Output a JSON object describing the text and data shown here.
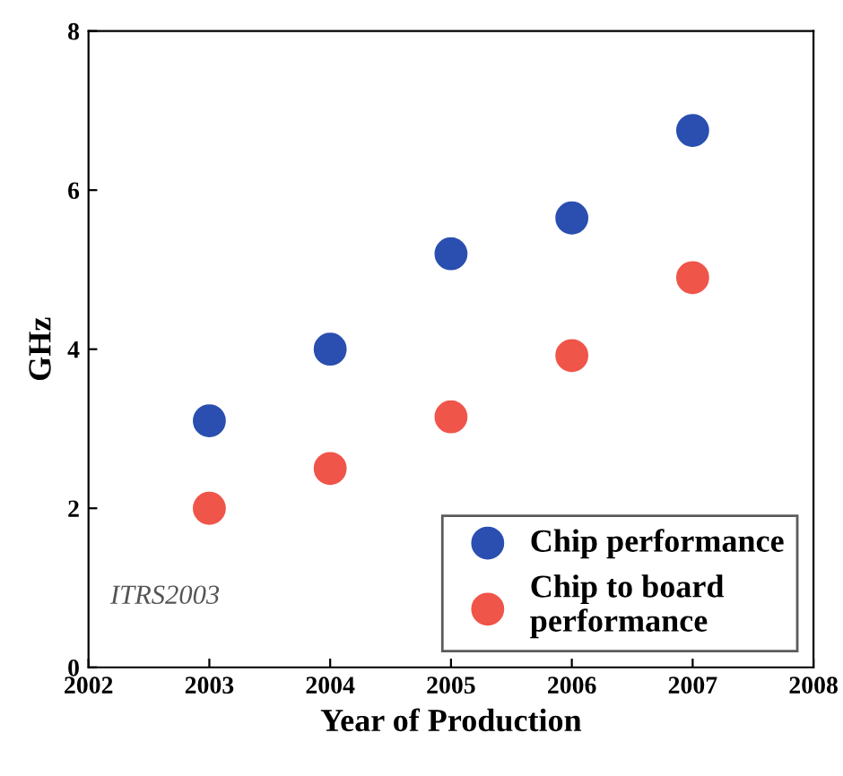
{
  "chart_data": {
    "type": "scatter",
    "xlabel": "Year of Production",
    "ylabel": "GHz",
    "x": [
      2003,
      2004,
      2005,
      2006,
      2007
    ],
    "series": [
      {
        "name": "Chip performance",
        "color": "#2a4fb0",
        "values": [
          3.1,
          4.0,
          5.2,
          5.65,
          6.75
        ]
      },
      {
        "name": "Chip to board\nperformance",
        "color": "#f0554a",
        "values": [
          2.0,
          2.5,
          3.15,
          3.92,
          4.9
        ]
      }
    ],
    "xlim": [
      2002,
      2008
    ],
    "xticks": [
      2002,
      2003,
      2004,
      2005,
      2006,
      2007,
      2008
    ],
    "ylim": [
      0,
      8
    ],
    "yticks": [
      0,
      2,
      4,
      6,
      8
    ],
    "annotations": [
      "ITRS2003"
    ],
    "legend": "bottom right",
    "grid": false,
    "marker": "circle"
  }
}
